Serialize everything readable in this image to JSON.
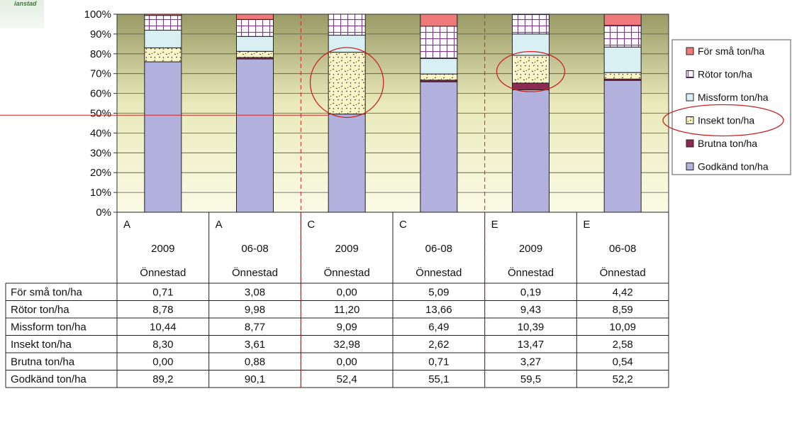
{
  "logo": {
    "text": "ianstad"
  },
  "chart_data": {
    "type": "bar",
    "stacked": "percent",
    "ylim": [
      0,
      100
    ],
    "yticks": [
      "0%",
      "10%",
      "20%",
      "30%",
      "40%",
      "50%",
      "60%",
      "70%",
      "80%",
      "90%",
      "100%"
    ],
    "grid": true,
    "legend_position": "right",
    "categories": [
      {
        "group": "A",
        "year": "2009",
        "site": "Önnestad"
      },
      {
        "group": "A",
        "year": "06-08",
        "site": "Önnestad"
      },
      {
        "group": "C",
        "year": "2009",
        "site": "Önnestad"
      },
      {
        "group": "C",
        "year": "06-08",
        "site": "Önnestad"
      },
      {
        "group": "E",
        "year": "2009",
        "site": "Önnestad"
      },
      {
        "group": "E",
        "year": "06-08",
        "site": "Önnestad"
      }
    ],
    "series": [
      {
        "name": "Godkänd ton/ha",
        "legend": "Godkänd ton/ha",
        "values": [
          89.2,
          90.1,
          52.4,
          55.1,
          59.5,
          52.2
        ],
        "display": [
          "89,2",
          "90,1",
          "52,4",
          "55,1",
          "59,5",
          "52,2"
        ],
        "color": "#b2b0dc",
        "pattern": "solid"
      },
      {
        "name": "Brutna ton/ha",
        "legend": "Brutna ton/ha",
        "values": [
          0.0,
          0.88,
          0.0,
          0.71,
          3.27,
          0.54
        ],
        "display": [
          "0,00",
          "0,88",
          "0,00",
          "0,71",
          "3,27",
          "0,54"
        ],
        "color": "#8b2a52",
        "pattern": "solid"
      },
      {
        "name": "Insekt ton/ha",
        "legend": "Insekt ton/ha",
        "values": [
          8.3,
          3.61,
          32.98,
          2.62,
          13.47,
          2.58
        ],
        "display": [
          "8,30",
          "3,61",
          "32,98",
          "2,62",
          "13,47",
          "2,58"
        ],
        "color": "#fff6c8",
        "pattern": "dots"
      },
      {
        "name": "Missform ton/ha",
        "legend": "Missform ton/ha",
        "values": [
          10.44,
          8.77,
          9.09,
          6.49,
          10.39,
          10.09
        ],
        "display": [
          "10,44",
          "8,77",
          "9,09",
          "6,49",
          "10,39",
          "10,09"
        ],
        "color": "#d8f0f4",
        "pattern": "solid"
      },
      {
        "name": "Rötor ton/ha",
        "legend": "Rötor ton/ha",
        "values": [
          8.78,
          9.98,
          11.2,
          13.66,
          9.43,
          8.59
        ],
        "display": [
          "8,78",
          "9,98",
          "11,20",
          "13,66",
          "9,43",
          "8,59"
        ],
        "color": "#ffffff",
        "pattern": "grid"
      },
      {
        "name": "För små ton/ha",
        "legend": "För små ton/ha",
        "values": [
          0.71,
          3.08,
          0.0,
          5.09,
          0.19,
          4.42
        ],
        "display": [
          "0,71",
          "3,08",
          "0,00",
          "5,09",
          "0,19",
          "4,42"
        ],
        "color": "#f07a7a",
        "pattern": "solid"
      }
    ],
    "table_row_order": [
      "För små ton/ha",
      "Rötor ton/ha",
      "Missform ton/ha",
      "Insekt ton/ha",
      "Brutna ton/ha",
      "Godkänd ton/ha"
    ],
    "annotations": [
      {
        "type": "ellipse",
        "category_index": 2,
        "y_range": [
          50,
          81
        ]
      },
      {
        "type": "ellipse",
        "category_index": 4,
        "y_range": [
          63,
          79
        ]
      },
      {
        "type": "ellipse",
        "target": "legend",
        "series": "Insekt ton/ha"
      },
      {
        "type": "hline",
        "y": 49,
        "category_range": [
          0,
          2
        ]
      },
      {
        "type": "vline-dashed",
        "between_categories": [
          1,
          2
        ]
      },
      {
        "type": "vline-dashed",
        "between_categories": [
          3,
          4
        ]
      }
    ]
  }
}
